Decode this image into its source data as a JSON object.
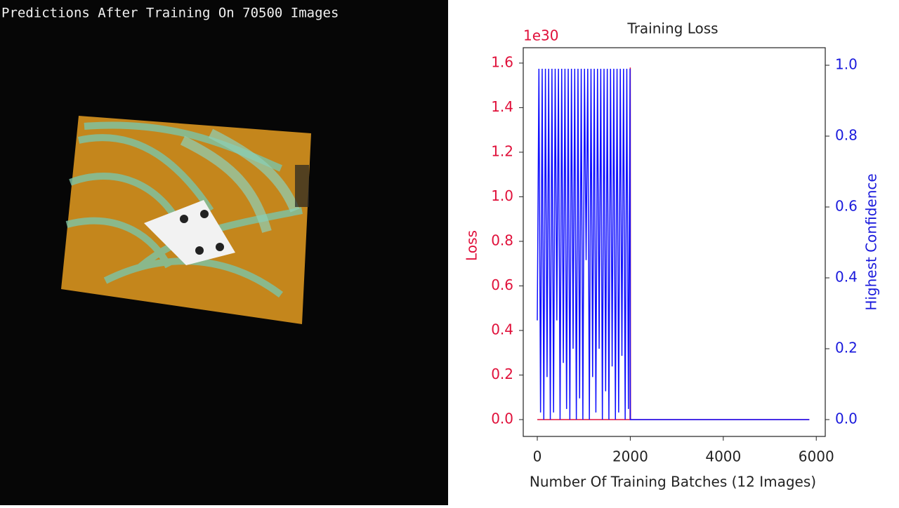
{
  "panel_title": "Predictions After Training On 70500 Images",
  "chart_data": {
    "type": "line",
    "title": "Training Loss",
    "offset_label": "1e30",
    "xlabel": "Number Of Training Batches (12 Images)",
    "ylabel": "Loss",
    "y2label": "Highest Confidence",
    "xlim": [
      -302,
      6193
    ],
    "xticks": [
      0,
      2000,
      4000,
      6000
    ],
    "ylim": [
      -0.0756,
      1.669
    ],
    "yticks": [
      {
        "value": 0,
        "label": "0.0"
      },
      0.2,
      0.4,
      0.6,
      0.8,
      {
        "value": 1,
        "label": "1.0"
      },
      1.2,
      1.4,
      1.6
    ],
    "y2lim": [
      -0.0475,
      1.0495
    ],
    "y2ticks": [
      {
        "value": 0,
        "label": "0.0"
      },
      0.2,
      0.4,
      0.6,
      0.8,
      {
        "value": 1,
        "label": "1.0"
      }
    ],
    "ycolor": "#e0103a",
    "y2color": "#1a1adc",
    "series": [
      {
        "color": "#e0103a",
        "x": [
          0,
          1995,
          2000,
          2005,
          5850
        ],
        "values": [
          0,
          0,
          1.58,
          0,
          0
        ]
      },
      {
        "color": "#1010ff",
        "axis": "y2",
        "x": [
          0,
          35,
          70,
          105,
          140,
          175,
          210,
          245,
          280,
          315,
          350,
          385,
          420,
          455,
          490,
          525,
          560,
          595,
          630,
          665,
          700,
          735,
          770,
          805,
          840,
          875,
          910,
          945,
          980,
          1015,
          1050,
          1085,
          1120,
          1155,
          1190,
          1225,
          1260,
          1295,
          1330,
          1365,
          1400,
          1435,
          1470,
          1505,
          1540,
          1575,
          1610,
          1645,
          1680,
          1715,
          1750,
          1785,
          1820,
          1855,
          1890,
          1925,
          1960,
          1995,
          2000,
          5850
        ],
        "values": [
          0.28,
          0.99,
          0.02,
          0.99,
          0.0,
          0.99,
          0.12,
          0.99,
          0.0,
          0.99,
          0.02,
          0.99,
          0.28,
          0.99,
          0.0,
          0.99,
          0.16,
          0.99,
          0.03,
          0.99,
          0.0,
          0.99,
          0.2,
          0.99,
          0.0,
          0.99,
          0.06,
          0.99,
          0.0,
          0.99,
          0.45,
          0.99,
          0.0,
          0.99,
          0.12,
          0.99,
          0.02,
          0.99,
          0.2,
          0.99,
          0.0,
          0.99,
          0.08,
          0.99,
          0.0,
          0.99,
          0.15,
          0.99,
          0.0,
          0.99,
          0.02,
          0.99,
          0.18,
          0.99,
          0.0,
          0.99,
          0.03,
          0.99,
          0,
          0
        ]
      }
    ]
  }
}
